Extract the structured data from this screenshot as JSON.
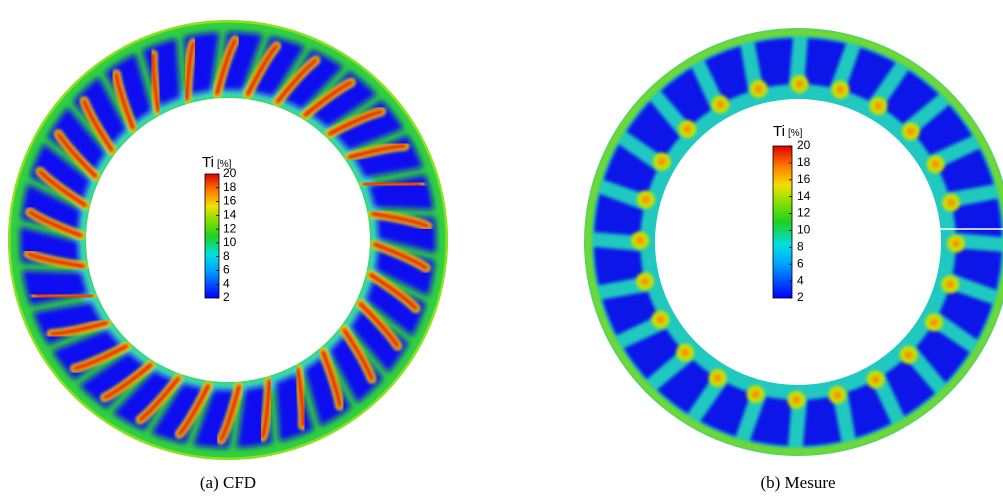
{
  "panels": [
    {
      "caption": "(a) CFD",
      "colorbar": {
        "title": "Ti",
        "unit": "[%]",
        "ticks": [
          2,
          4,
          6,
          8,
          10,
          12,
          14,
          16,
          18,
          20
        ]
      }
    },
    {
      "caption": "(b) Mesure",
      "colorbar": {
        "title": "Ti",
        "unit": "[%]",
        "ticks": [
          2,
          4,
          6,
          8,
          10,
          12,
          14,
          16,
          18,
          20
        ]
      }
    }
  ]
}
